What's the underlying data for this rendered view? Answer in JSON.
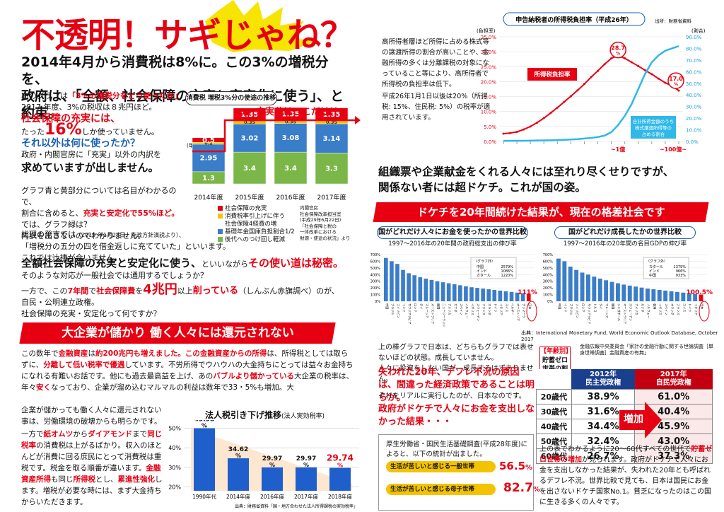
{
  "left": {
    "title": "不透明！サギじゃね？",
    "headline_line1": "2014年4月から消費税は8%に。この3%の増税分を、",
    "headline_line2": "政府は、「全額、社会保障の充実と安定化に使う」、と約束。",
    "p1_a": "右のグラフは",
    "p1_b": "「3%の増税分をどう使ったか」",
    "p1_c": "2017 年度、3%の税収は８兆円ほど。",
    "p1_d": "社会保障の充実には、",
    "p1_e": "たった",
    "p1_f": "16%",
    "p1_g": "しか使っていません。",
    "p1_h": "それ以外は何に使ったか？",
    "p1_i": "政府・内閣官房に「充実」以外の内訳を",
    "p1_j": "求めていますが出しません。",
    "p2_a": "グラフ青と黄部分については名目がわかるので、",
    "p2_b": "割合に含めると、",
    "p2_c": "充実と安定化で55%ほど。",
    "p2_d": "では、グラフ緑は？",
    "p2_e": "内訳を出さないのでわかりません。",
    "p3_a": "総理の発言では",
    "p3_b": "（2019 年1月28日、施政方針演説より）、",
    "p3_c": "「増税分の五分の四を借金返しに充てていた」といいます。",
    "p3_d": "これでは辻褄が合いません。",
    "p4_a": "全額社会保障の充実と安定化に使う、",
    "p4_b": "といいながら",
    "p4_c": "その使い道は秘密。",
    "p4_d": "そのような対応が一般社会では通用するでしょうか？",
    "p5_a": "一方で、この",
    "p5_b": "7年間",
    "p5_c": "で",
    "p5_d": "社会保障費",
    "p5_e": "を",
    "p5_f": "4兆円",
    "p5_g": "以上",
    "p5_h": "削っている",
    "p5_i": "（しんぶん赤旗調べ）のが、",
    "p5_j": "自民・公明連立政権。",
    "p5_k": "社会保障の充実・安定化って何ですか？",
    "banner": "大企業が儲かり 働く人々には還元されない",
    "p6_a": "この数年で",
    "p6_b": "金融資産",
    "p6_c": "は",
    "p6_d": "約200兆円も増えました。この金融資産からの所得",
    "p6_e": "は、所得税としては取らずに、",
    "p6_f": "分離して低い税率で優遇",
    "p6_g": "しています。不労所得でウハウハの大金持ちにとっては益々お金持ちになれる有難いお話です。他にも過去最高益を上げ、あの",
    "p6_h": "バブルより儲かっている",
    "p6_i": "大企業の税率は、年々",
    "p6_j": "安く",
    "p6_k": "なっており、企業が溜め込むマルマルの利益は数年で33・5%も増加。大",
    "p7_a": "企業が儲かっても働く人々に還元されない事は、労働環境の破壊からも明らかです。",
    "p7_b": "一方で",
    "p7_c": "紙オムツ",
    "p7_d": "から",
    "p7_e": "ダイアモンド",
    "p7_f": "まで",
    "p7_g": "同じ税率",
    "p7_h": "の消費税は上がるばかり。収入のほとんどが消費に回る庶民にとって消費税は重税です。税金を取る順番が違います。",
    "p7_i": "金融資産所得",
    "p7_j": "も同じ",
    "p7_k": "所得税",
    "p7_l": "とし、",
    "p7_m": "累進性強化",
    "p7_n": "します。増税が必要な時には、まず大金持ちからいただきます。"
  },
  "chart1": {
    "title": "消費税 増税3%分の使途の推移",
    "unit": "(単位：兆円)",
    "annotation": "充実分はここだけ!!",
    "categories": [
      "2014年度",
      "2015年度",
      "2016年度",
      "2017年度"
    ],
    "series": [
      {
        "name": "後代へのつけ回し軽減",
        "color": "#7ab648",
        "values": [
          1.3,
          3.4,
          3.4,
          3.3
        ]
      },
      {
        "name": "基礎年金国庫負担割合1/2",
        "color": "#3a7dc9",
        "values": [
          2.95,
          3.02,
          3.08,
          3.14
        ]
      },
      {
        "name": "消費税率引上げに伴う社会保障4経費の増",
        "color": "#f4c300",
        "values": [
          0.2,
          0.35,
          0.35,
          0.35
        ]
      },
      {
        "name": "社会保障の充実",
        "color": "#e60012",
        "values": [
          0.5,
          1.35,
          1.35,
          1.35
        ]
      }
    ],
    "labels_yellow": [
      "0.2",
      "0.35",
      "0.35",
      "0.35"
    ],
    "legend_0": "社会保障の充実",
    "legend_1a": "消費税率引上げに伴う",
    "legend_1b": "社会保障4経費の増",
    "legend_2": "基礎年金国庫負担割合1/2",
    "legend_3": "後代へのつけ回し軽減",
    "source_1": "内閣官房",
    "source_2": "社会保障改革担当室",
    "source_3": "(平成29年6月22日)",
    "source_4": "「社会保障と税の",
    "source_5": "一体改革における",
    "source_6": "財源・使途の状況」より"
  },
  "chart2": {
    "type": "bar",
    "title": "法人税引き下げ推移",
    "subtitle": "(法人実効税率)",
    "categories": [
      "1990年代",
      "2014年度",
      "2016年度",
      "2017年度",
      "2018年度"
    ],
    "values": [
      49.98,
      34.62,
      29.97,
      29.97,
      29.74
    ],
    "value_labels": [
      "49.98",
      "34.62",
      "29.97",
      "29.97",
      "29.74"
    ],
    "pct": "%",
    "y_ticks": [
      "50%",
      "40%",
      "30%",
      "20%"
    ],
    "ylim": [
      18,
      52
    ],
    "source": "出典：財務省資料「国・地方合わせた法人所得課税の実効税率」"
  },
  "chart3": {
    "type": "line",
    "title": "申告納税者の所得税負担率（平成26年）",
    "source": "出所：財務省資料",
    "left_axis_label": "(負担率)",
    "right_axis_label": "(割合)",
    "left_ticks": [
      "35.0%",
      "30.0%",
      "25.0%",
      "20.0%",
      "15.0%",
      "10.0%",
      "5.0%",
      "0.0%"
    ],
    "right_ticks": [
      "90.0%",
      "80.0%",
      "70.0%",
      "60.0%",
      "50.0%",
      "40.0%",
      "30.0%",
      "20.0%",
      "10.0%",
      "0.0%"
    ],
    "peak": "28.7",
    "end": "17.0",
    "unit_pct": "%",
    "series_a_label": "所得税負担率",
    "series_b_label_1": "合計所得金額のうち",
    "series_b_label_2": "株式譲渡所得等の",
    "series_b_label_3": "占める割合",
    "x_mark_1": "~1億",
    "x_mark_2": "~100億~",
    "burden": [
      2.6,
      2.8,
      3.2,
      4.0,
      5.0,
      6.3,
      7.8,
      9.5,
      11.3,
      13.2,
      15.1,
      17.1,
      19.2,
      21.5,
      23.6,
      25.8,
      27.8,
      28.7,
      27.8,
      26.5,
      25.2,
      23.8,
      22.5,
      21.0,
      19.6,
      18.6,
      17.0
    ],
    "share": [
      0.5,
      0.5,
      0.6,
      0.6,
      0.7,
      0.8,
      0.9,
      1.0,
      1.2,
      1.4,
      1.7,
      2.0,
      2.5,
      3.0,
      3.8,
      5.0,
      8.0,
      14.0,
      22.0,
      32.0,
      45.0,
      58.0,
      68.0,
      74.0,
      78.0,
      80.0,
      82.0
    ],
    "text_a": "高所得者層ほど所得に占める株式等の譲渡所得の割合が高いことや、金融所得の多くは分離課税の対象になっていること等により、高所得者で所得税の負担率は低下。",
    "text_b": "平成26年1月1日以後は20%（所得税: 15%、住民税: 5%）の税率が適用されています。"
  },
  "right": {
    "h2_line1": "組織票や企業献金をくれる人々には至れり尽くせりですが、",
    "h2_line2": "関係ない者には超ドケチ。これが国の姿。",
    "banner": "ドケチを20年間続けた結果が、現在の格差社会です",
    "p2_a": "上の棒グラフで日本は、どちらもグラフでは表せないほどの状態。成長していません。",
    "p2_b": "人々に投資をしない国が、成長するはずありません。",
    "p2_c": "失われた20年、デフレ不況の原因は、間違った経済政策であることは明らか。",
    "p2_d": "それをリアルに実行したのが、日本なのです。",
    "p2_e": "政府がドケチで人々にお金を支出しなかった結果・・・",
    "survey_text": "厚生労働省・国民生活基礎調査(平成28年度)によると、以下の統計が出ました。",
    "survey_1_label": "生活が苦しいと感じる一般世帯",
    "survey_1_val": "56.5",
    "survey_2_label": "生活が苦しいと感じる母子世帯",
    "survey_2_val": "82.7",
    "pct": "%",
    "tbl_tag_1": "【年齢別】",
    "tbl_tag_2": "貯蓄ゼロ世帯の割合",
    "tbl_source": "金融広報中央委員会「家計の金融行動に関する世論調査［単身世帯調査］金融資産の有無」",
    "tbl_head_1a": "2012年",
    "tbl_head_1b": "民主党政権",
    "tbl_head_2a": "2017年",
    "tbl_head_2b": "自民党政権",
    "rows": [
      {
        "age": "20歳代",
        "a": "38.9%",
        "b": "61.0%"
      },
      {
        "age": "30歳代",
        "a": "31.6%",
        "b": "40.4%"
      },
      {
        "age": "40歳代",
        "a": "34.4%",
        "b": "45.9%"
      },
      {
        "age": "50歳代",
        "a": "32.4%",
        "b": "43.0%"
      },
      {
        "age": "60歳代",
        "a": "26.7%",
        "b": "37.3%"
      }
    ],
    "increase": "増加",
    "p3_a": "上の表でわかるように20～60代すべての世代で",
    "p3_b": "貯蓄ゼロ世帯の増加",
    "p3_c": "が見られます。政府がドケチで人々にお金を支出しなかった結果が、失われた20年とも呼ばれるデフレ不況。世界比較で見ても、日本は国民にお金を出さないドケチ国家No.1。",
    "p3_d": "貧乏になったのはこの国に生きる多くの人々です。",
    "source_imf": "出典：International Monetary Fund, World Economic Outlook Database, October 2017"
  },
  "chart4": {
    "type": "bar",
    "title": "国がどれだけ人々にお金を使ったかの世界比較",
    "subtitle": "1997～2016年の20年間の政府総支出の伸び率",
    "values": [
      650,
      600,
      560,
      470,
      420,
      390,
      360,
      340,
      320,
      300,
      285,
      270,
      255,
      240,
      225,
      210,
      200,
      190,
      180,
      170,
      160,
      150,
      140,
      130,
      120,
      111
    ],
    "labels": [
      "中国",
      "ブラジル",
      "フィリピン",
      "インド",
      "サウジアラビア",
      "ロシア",
      "タイ",
      "マレーシア",
      "オーストラリア",
      "韓国",
      "ニュージーランド",
      "アメリカ",
      "カナダ",
      "スペイン",
      "ノルウェー",
      "イギリス",
      "スウェーデン",
      "フランス",
      "オランダ",
      "ドイツ",
      "イタリア",
      "スイス",
      "ベルギー",
      "オーストリア",
      "デンマーク",
      "日本"
    ],
    "box_title": "〈グラフ外〉",
    "box_rows": [
      [
        "中国",
        "2579%"
      ],
      [
        "インド",
        "1086%"
      ],
      [
        "カタール",
        "1220%"
      ]
    ],
    "japan_val": "111%",
    "y_ticks": [
      "700%",
      "600%",
      "500%",
      "400%",
      "300%",
      "200%",
      "100%",
      "0%"
    ],
    "ylim": [
      0,
      700
    ]
  },
  "chart5": {
    "type": "bar",
    "title": "国がどれだけ成長したかの世界比較",
    "subtitle": "1997～2016年の20年間の名目GDPの伸び率",
    "values": [
      640,
      600,
      520,
      470,
      430,
      400,
      370,
      340,
      315,
      290,
      270,
      250,
      235,
      220,
      205,
      190,
      180,
      170,
      160,
      150,
      140,
      130,
      120,
      110,
      100.5
    ],
    "labels": [
      "中国",
      "インド",
      "ブラジル",
      "フィリピン",
      "ロシア",
      "サウジアラビア",
      "トルコ",
      "タイ",
      "マレーシア",
      "韓国",
      "シンガポール",
      "オーストラリア",
      "スウェーデン",
      "アメリカ",
      "カナダ",
      "ノルウェー",
      "香港",
      "イギリス",
      "スペイン",
      "オランダ",
      "フランス",
      "スイス",
      "ドイツ",
      "イタリア",
      "日本"
    ],
    "box_title": "〈グラフ外〉",
    "box_rows": [
      [
        "カタール",
        "1379%"
      ],
      [
        "インド",
        "966%"
      ],
      [
        "中国",
        "933%"
      ]
    ],
    "japan_val": "100.5%",
    "y_ticks": [
      "700%",
      "600%",
      "500%",
      "400%",
      "300%",
      "200%",
      "100%",
      "0%"
    ],
    "ylim": [
      0,
      700
    ]
  }
}
